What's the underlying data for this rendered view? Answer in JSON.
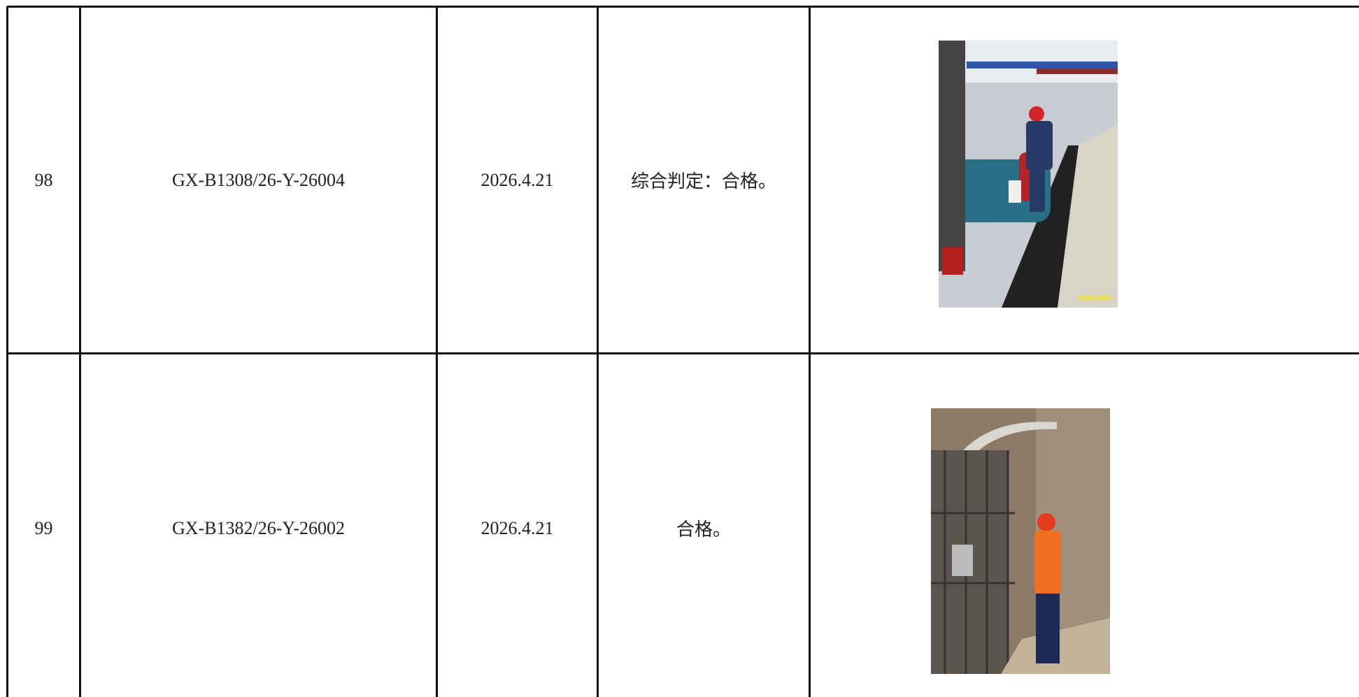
{
  "table": {
    "rows": [
      [
        "98",
        "GX-B1308/26-Y-26004",
        "2026.4.21",
        "综合判定：合格。",
        "2026/3/25"
      ],
      [
        "99",
        "GX-B1382/26-Y-26002",
        "2026.4.21",
        "合格。"
      ]
    ]
  }
}
